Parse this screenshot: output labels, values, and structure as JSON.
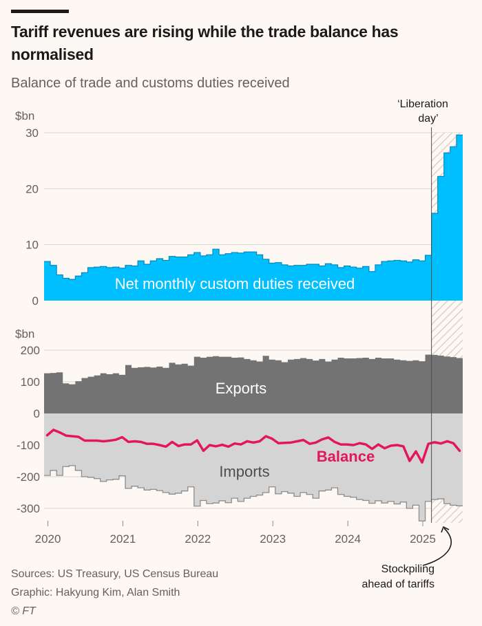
{
  "header": {
    "title": "Tariff revenues are rising while the trade balance has normalised",
    "subtitle": "Balance of trade and customs duties received"
  },
  "footer": {
    "sources": "Sources: US Treasury, US Census Bureau",
    "graphic": "Graphic: Hakyung Kim, Alan Smith",
    "copyright": "© FT"
  },
  "colors": {
    "customs": "#00bfff",
    "exports": "#737373",
    "imports": "#d4d4d4",
    "balance": "#e3165b",
    "background": "#fdf8f3",
    "grid": "#d9d2cb"
  },
  "chart_data": [
    {
      "type": "area",
      "title": "Net monthly custom duties received",
      "ylabel": "$bn",
      "ylim": [
        0,
        30
      ],
      "yticks": [
        "0",
        "10",
        "20",
        "30"
      ],
      "x_start": "2020-01",
      "x_end": "2025-07",
      "xtick_labels": [
        "2020",
        "2021",
        "2022",
        "2023",
        "2024",
        "2025"
      ],
      "grid": true,
      "series": [
        {
          "name": "Net monthly custom duties received",
          "label": "Net monthly custom duties received",
          "values": [
            7.0,
            6.3,
            4.6,
            4.0,
            3.8,
            4.4,
            5.0,
            5.9,
            6.0,
            6.1,
            5.9,
            6.0,
            5.8,
            6.3,
            6.2,
            7.1,
            6.5,
            7.1,
            7.5,
            7.2,
            7.9,
            7.8,
            7.8,
            8.2,
            8.6,
            8.0,
            8.2,
            9.2,
            8.2,
            8.4,
            8.6,
            8.5,
            8.7,
            8.7,
            8.2,
            7.4,
            6.7,
            6.8,
            6.4,
            6.2,
            6.3,
            6.3,
            6.5,
            6.5,
            6.2,
            6.6,
            6.4,
            5.9,
            6.2,
            6.0,
            5.8,
            6.1,
            5.2,
            6.4,
            7.0,
            7.1,
            7.2,
            7.1,
            6.9,
            7.3,
            7.1,
            8.1,
            15.6,
            22.2,
            26.4,
            27.5,
            29.6
          ]
        }
      ],
      "annotations": [
        {
          "text": "‘Liberation day’",
          "at": "2025-04"
        }
      ]
    },
    {
      "type": "area",
      "title": "Balance of trade",
      "ylabel": "$bn",
      "ylim": [
        -340,
        210
      ],
      "yticks": [
        "-300",
        "-200",
        "-100",
        "0",
        "100",
        "200"
      ],
      "x_start": "2020-01",
      "x_end": "2025-07",
      "xtick_labels": [
        "2020",
        "2021",
        "2022",
        "2023",
        "2024",
        "2025"
      ],
      "grid": true,
      "series": [
        {
          "name": "Exports",
          "label": "Exports",
          "values": [
            127,
            128,
            130,
            95,
            92,
            102,
            112,
            116,
            120,
            127,
            124,
            127,
            122,
            153,
            144,
            146,
            147,
            145,
            148,
            144,
            160,
            155,
            157,
            151,
            179,
            176,
            179,
            181,
            179,
            179,
            176,
            177,
            172,
            168,
            164,
            182,
            170,
            168,
            162,
            170,
            172,
            175,
            172,
            167,
            172,
            164,
            170,
            176,
            174,
            174,
            175,
            176,
            172,
            176,
            174,
            174,
            170,
            168,
            166,
            168,
            165,
            186,
            185,
            183,
            180,
            178,
            175
          ]
        },
        {
          "name": "Imports",
          "label": "Imports",
          "values": [
            -196,
            -180,
            -196,
            -168,
            -165,
            -180,
            -200,
            -202,
            -206,
            -215,
            -210,
            -208,
            -197,
            -237,
            -230,
            -235,
            -242,
            -240,
            -244,
            -250,
            -255,
            -252,
            -245,
            -232,
            -293,
            -275,
            -285,
            -283,
            -276,
            -282,
            -268,
            -278,
            -268,
            -262,
            -258,
            -250,
            -232,
            -254,
            -247,
            -252,
            -262,
            -250,
            -256,
            -268,
            -245,
            -242,
            -235,
            -256,
            -262,
            -265,
            -272,
            -275,
            -284,
            -276,
            -283,
            -278,
            -286,
            -280,
            -300,
            -290,
            -340,
            -278,
            -272,
            -270,
            -285,
            -290,
            -292
          ]
        },
        {
          "name": "Balance",
          "label": "Balance",
          "values": [
            -69,
            -52,
            -60,
            -70,
            -72,
            -74,
            -86,
            -86,
            -86,
            -88,
            -86,
            -83,
            -75,
            -90,
            -88,
            -90,
            -96,
            -96,
            -100,
            -105,
            -90,
            -103,
            -98,
            -98,
            -85,
            -118,
            -100,
            -104,
            -99,
            -105,
            -95,
            -98,
            -88,
            -92,
            -88,
            -72,
            -80,
            -94,
            -93,
            -92,
            -88,
            -84,
            -96,
            -92,
            -82,
            -76,
            -90,
            -98,
            -98,
            -100,
            -94,
            -98,
            -112,
            -98,
            -110,
            -102,
            -100,
            -104,
            -150,
            -120,
            -155,
            -96,
            -91,
            -95,
            -88,
            -94,
            -118
          ]
        }
      ],
      "annotations": [
        {
          "text": "Stockpiling ahead of tariffs",
          "at": "2025-03"
        }
      ]
    }
  ]
}
